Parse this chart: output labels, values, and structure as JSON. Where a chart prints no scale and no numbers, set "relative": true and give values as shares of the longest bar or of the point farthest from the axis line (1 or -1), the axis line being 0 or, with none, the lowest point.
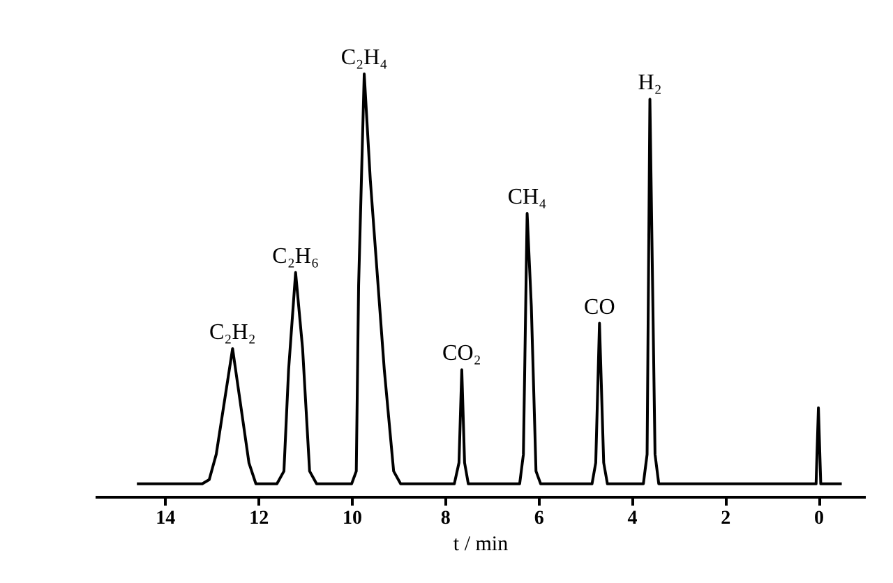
{
  "chart_data": {
    "type": "line",
    "relative": true,
    "xlabel": "t / min",
    "xlim": [
      15.5,
      -1.0
    ],
    "xticks": [
      14,
      12,
      10,
      8,
      6,
      4,
      2,
      0
    ],
    "tick_labels": "x",
    "grid": false,
    "marker": "none",
    "line_style": "solid",
    "series": [
      {
        "color": "#000000",
        "x": [
          14.6,
          13.2,
          13.05,
          12.9,
          12.55,
          12.2,
          12.05,
          11.6,
          11.45,
          11.35,
          11.2,
          11.05,
          10.9,
          10.75,
          10.0,
          9.9,
          9.85,
          9.73,
          9.6,
          9.3,
          9.1,
          8.95,
          7.8,
          7.7,
          7.64,
          7.58,
          7.5,
          6.4,
          6.32,
          6.24,
          6.15,
          6.05,
          5.95,
          4.85,
          4.77,
          4.69,
          4.6,
          4.52,
          3.75,
          3.67,
          3.61,
          3.5,
          3.42,
          0.05,
          0.0,
          -0.05,
          -0.5
        ],
        "values": [
          0.03,
          0.03,
          0.04,
          0.1,
          0.35,
          0.08,
          0.03,
          0.03,
          0.06,
          0.3,
          0.53,
          0.35,
          0.06,
          0.03,
          0.03,
          0.06,
          0.5,
          1.0,
          0.75,
          0.3,
          0.06,
          0.03,
          0.03,
          0.08,
          0.3,
          0.08,
          0.03,
          0.03,
          0.1,
          0.67,
          0.45,
          0.06,
          0.03,
          0.03,
          0.08,
          0.41,
          0.08,
          0.03,
          0.03,
          0.1,
          0.94,
          0.1,
          0.03,
          0.03,
          0.21,
          0.03,
          0.03
        ]
      }
    ],
    "annotations": [
      {
        "text": "C₂H₂",
        "x": 12.55,
        "y": 0.35
      },
      {
        "text": "C₂H₆",
        "x": 11.2,
        "y": 0.53
      },
      {
        "text": "C₂H₄",
        "x": 9.73,
        "y": 1.0
      },
      {
        "text": "CO₂",
        "x": 7.64,
        "y": 0.3
      },
      {
        "text": "CH₄",
        "x": 6.24,
        "y": 0.67
      },
      {
        "text": "CO",
        "x": 4.69,
        "y": 0.41
      },
      {
        "text": "H₂",
        "x": 3.61,
        "y": 0.94
      }
    ]
  }
}
